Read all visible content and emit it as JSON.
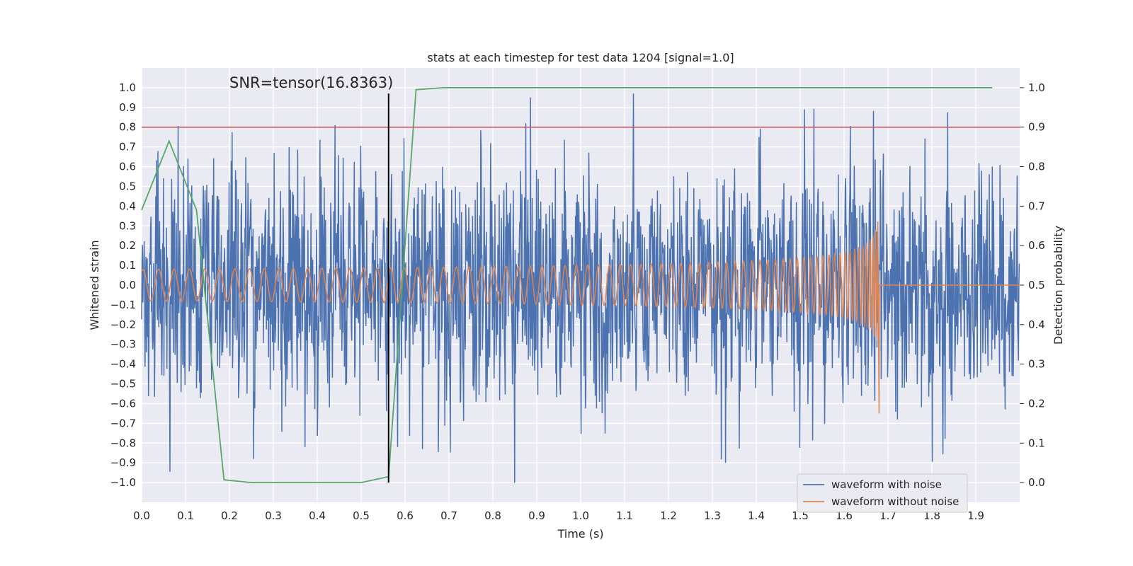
{
  "chart_data": {
    "type": "line",
    "title": "stats at each timestep for test data 1204 [signal=1.0]",
    "xlabel": "Time (s)",
    "ylabel": "Whitened strain",
    "ylabel_right": "Detection probability",
    "xlim": [
      0.0,
      2.0
    ],
    "ylim": [
      -1.1,
      1.1
    ],
    "ylim_right": [
      -0.05,
      1.05
    ],
    "xticks": [
      "0.0",
      "0.1",
      "0.2",
      "0.3",
      "0.4",
      "0.5",
      "0.6",
      "0.7",
      "0.8",
      "0.9",
      "1.0",
      "1.1",
      "1.2",
      "1.3",
      "1.4",
      "1.5",
      "1.6",
      "1.7",
      "1.8",
      "1.9"
    ],
    "yticks": [
      "−1.0",
      "−0.9",
      "−0.8",
      "−0.7",
      "−0.6",
      "−0.5",
      "−0.4",
      "−0.3",
      "−0.2",
      "−0.1",
      "0.0",
      "0.1",
      "0.2",
      "0.3",
      "0.4",
      "0.5",
      "0.6",
      "0.7",
      "0.8",
      "0.9",
      "1.0"
    ],
    "yticks_right": [
      "0.0",
      "0.1",
      "0.2",
      "0.3",
      "0.4",
      "0.5",
      "0.6",
      "0.7",
      "0.8",
      "0.9",
      "1.0"
    ],
    "grid": true,
    "legend_position": "bottom-right",
    "annotation": "SNR=tensor(16.8363)",
    "colors": {
      "background": "#eaeaf2",
      "grid": "#ffffff",
      "noise": "#4c72b0",
      "clean": "#dd8452",
      "probability": "#55a868",
      "threshold": "#c44e52",
      "marker": "#000000"
    },
    "series": [
      {
        "name": "waveform with noise",
        "axis": "left",
        "approx": "white noise, std about 0.3, min about -1.0, max about 0.96",
        "peaks": [
          [
            0.44,
            0.81
          ],
          [
            0.875,
            0.82
          ],
          [
            1.12,
            0.97
          ],
          [
            1.51,
            0.89
          ],
          [
            0.85,
            -1.0
          ],
          [
            1.33,
            -0.9
          ],
          [
            0.255,
            -0.88
          ],
          [
            0.64,
            -0.83
          ]
        ]
      },
      {
        "name": "waveform without noise",
        "axis": "left",
        "approx": "chirp: amplitude 0.08 at t=0 rising to about 0.45 at t=1.68, frequency rising from about 28 Hz to about 280 Hz, then flat at 0.0",
        "merger_time": 1.68,
        "final_min": -0.65
      },
      {
        "axis": "right",
        "x": [
          0.0,
          0.0625,
          0.125,
          0.1875,
          0.25,
          0.3125,
          0.375,
          0.4375,
          0.5,
          0.5625,
          0.625,
          0.6875,
          0.75,
          0.8125,
          0.875,
          0.9375,
          1.0,
          1.0625,
          1.125,
          1.1875,
          1.25,
          1.3125,
          1.375,
          1.4375,
          1.5,
          1.5625,
          1.625,
          1.6875,
          1.75,
          1.8125,
          1.875,
          1.9375
        ],
        "y": [
          0.69,
          0.865,
          0.69,
          0.007,
          0.0,
          0.0,
          0.0,
          0.0,
          0.0,
          0.015,
          0.995,
          1.0,
          1.0,
          1.0,
          1.0,
          1.0,
          1.0,
          1.0,
          1.0,
          1.0,
          1.0,
          1.0,
          1.0,
          1.0,
          1.0,
          1.0,
          1.0,
          1.0,
          1.0,
          1.0,
          1.0,
          1.0
        ]
      },
      {
        "axis": "right",
        "type": "hline",
        "y": 0.9
      },
      {
        "axis": "left",
        "type": "vline",
        "x": 0.5625,
        "ymin": -1.0,
        "ymax": 0.97
      }
    ]
  }
}
